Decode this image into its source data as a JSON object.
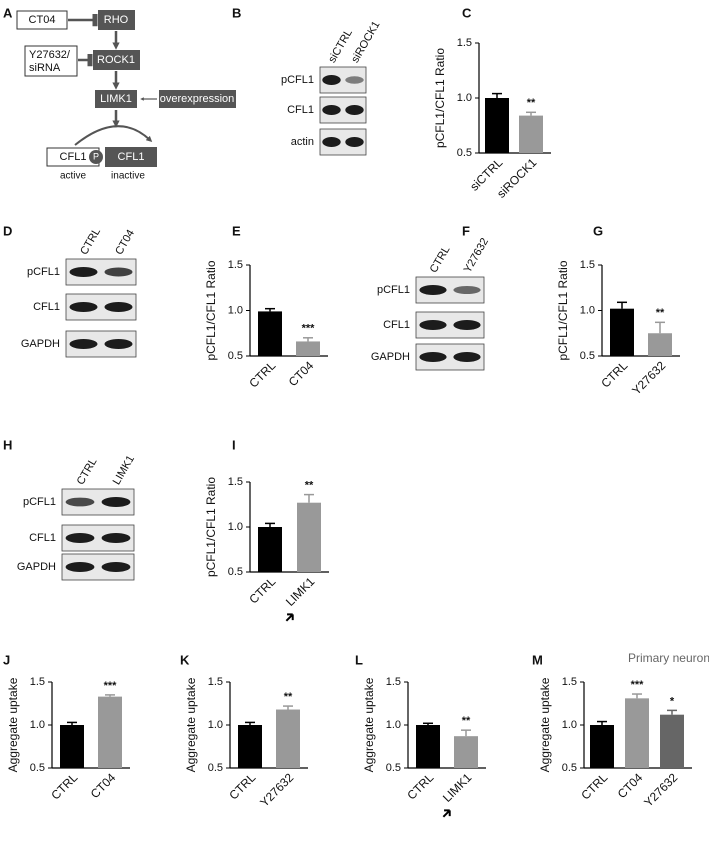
{
  "diagram": {
    "panel": "A",
    "nodes": [
      "CT04",
      "RHO",
      "Y27632/",
      "siRNA",
      "ROCK1",
      "LIMK1",
      "overexpression",
      "CFL1",
      "P",
      "CFL1"
    ],
    "states": [
      "active",
      "inactive"
    ]
  },
  "blots": [
    {
      "panel": "B",
      "lanes": [
        "siCTRL",
        "siROCK1"
      ],
      "rows": [
        "pCFL1",
        "CFL1",
        "actin"
      ]
    },
    {
      "panel": "D",
      "lanes": [
        "CTRL",
        "CT04"
      ],
      "rows": [
        "pCFL1",
        "CFL1",
        "GAPDH"
      ]
    },
    {
      "panel": "F",
      "lanes": [
        "CTRL",
        "Y27632"
      ],
      "rows": [
        "pCFL1",
        "CFL1",
        "GAPDH"
      ]
    },
    {
      "panel": "H",
      "lanes": [
        "CTRL",
        "LIMK1"
      ],
      "rows": [
        "pCFL1",
        "CFL1",
        "GAPDH"
      ]
    }
  ],
  "chart_data": [
    {
      "type": "bar",
      "panel": "C",
      "ylabel": "pCFL1/CFL1 Ratio",
      "categories": [
        "siCTRL",
        "siROCK1"
      ],
      "values": [
        1.0,
        0.84
      ],
      "errors": [
        0.04,
        0.03
      ],
      "colors": [
        "#000000",
        "#999999"
      ],
      "significance": [
        null,
        "**"
      ],
      "ylim": [
        0.5,
        1.5
      ],
      "yticks": [
        0.5,
        {
          "value": 1.0,
          "label": "1.0"
        },
        1.5
      ]
    },
    {
      "type": "bar",
      "panel": "E",
      "ylabel": "pCFL1/CFL1 Ratio",
      "categories": [
        "CTRL",
        "CT04"
      ],
      "values": [
        0.99,
        0.66
      ],
      "errors": [
        0.03,
        0.04
      ],
      "colors": [
        "#000000",
        "#999999"
      ],
      "significance": [
        null,
        "***"
      ],
      "ylim": [
        0.5,
        1.5
      ],
      "yticks": [
        0.5,
        {
          "value": 1.0,
          "label": "1.0"
        },
        1.5
      ]
    },
    {
      "type": "bar",
      "panel": "G",
      "ylabel": "pCFL1/CFL1 Ratio",
      "categories": [
        "CTRL",
        "Y27632"
      ],
      "values": [
        1.02,
        0.75
      ],
      "errors": [
        0.07,
        0.12
      ],
      "colors": [
        "#000000",
        "#999999"
      ],
      "significance": [
        null,
        "**"
      ],
      "ylim": [
        0.5,
        1.5
      ],
      "yticks": [
        0.5,
        {
          "value": 1.0,
          "label": "1.0"
        },
        1.5
      ]
    },
    {
      "type": "bar",
      "panel": "I",
      "ylabel": "pCFL1/CFL1 Ratio",
      "categories": [
        "CTRL",
        "LIMK1"
      ],
      "values": [
        1.0,
        1.27
      ],
      "errors": [
        0.04,
        0.09
      ],
      "colors": [
        "#000000",
        "#999999"
      ],
      "significance": [
        null,
        "**"
      ],
      "ylim": [
        0.5,
        1.5
      ],
      "yticks": [
        0.5,
        {
          "value": 1.0,
          "label": "1.0"
        },
        1.5
      ]
    },
    {
      "type": "bar",
      "panel": "J",
      "ylabel": "Aggregate uptake",
      "categories": [
        "CTRL",
        "CT04"
      ],
      "values": [
        1.0,
        1.33
      ],
      "errors": [
        0.03,
        0.02
      ],
      "colors": [
        "#000000",
        "#999999"
      ],
      "significance": [
        null,
        "***"
      ],
      "ylim": [
        0.5,
        1.5
      ],
      "yticks": [
        0.5,
        {
          "value": 1.0,
          "label": "1.0"
        },
        1.5
      ]
    },
    {
      "type": "bar",
      "panel": "K",
      "ylabel": "Aggregate uptake",
      "categories": [
        "CTRL",
        "Y27632"
      ],
      "values": [
        1.0,
        1.18
      ],
      "errors": [
        0.03,
        0.04
      ],
      "colors": [
        "#000000",
        "#999999"
      ],
      "significance": [
        null,
        "**"
      ],
      "ylim": [
        0.5,
        1.5
      ],
      "yticks": [
        0.5,
        {
          "value": 1.0,
          "label": "1.0"
        },
        1.5
      ]
    },
    {
      "type": "bar",
      "panel": "L",
      "ylabel": "Aggregate uptake",
      "categories": [
        "CTRL",
        "LIMK1"
      ],
      "values": [
        1.0,
        0.87
      ],
      "errors": [
        0.02,
        0.07
      ],
      "colors": [
        "#000000",
        "#999999"
      ],
      "significance": [
        null,
        "**"
      ],
      "ylim": [
        0.5,
        1.5
      ],
      "yticks": [
        0.5,
        {
          "value": 1.0,
          "label": "1.0"
        },
        1.5
      ]
    },
    {
      "type": "bar",
      "panel": "M",
      "annotation": "Primary neuron",
      "ylabel": "Aggregate uptake",
      "categories": [
        "CTRL",
        "CT04",
        "Y27632"
      ],
      "values": [
        1.0,
        1.31,
        1.12
      ],
      "errors": [
        0.04,
        0.05,
        0.05
      ],
      "colors": [
        "#000000",
        "#999999",
        "#666666"
      ],
      "significance": [
        null,
        "***",
        "*"
      ],
      "ylim": [
        0.5,
        1.5
      ],
      "yticks": [
        0.5,
        {
          "value": 1.0,
          "label": "1.0"
        },
        1.5
      ]
    }
  ]
}
